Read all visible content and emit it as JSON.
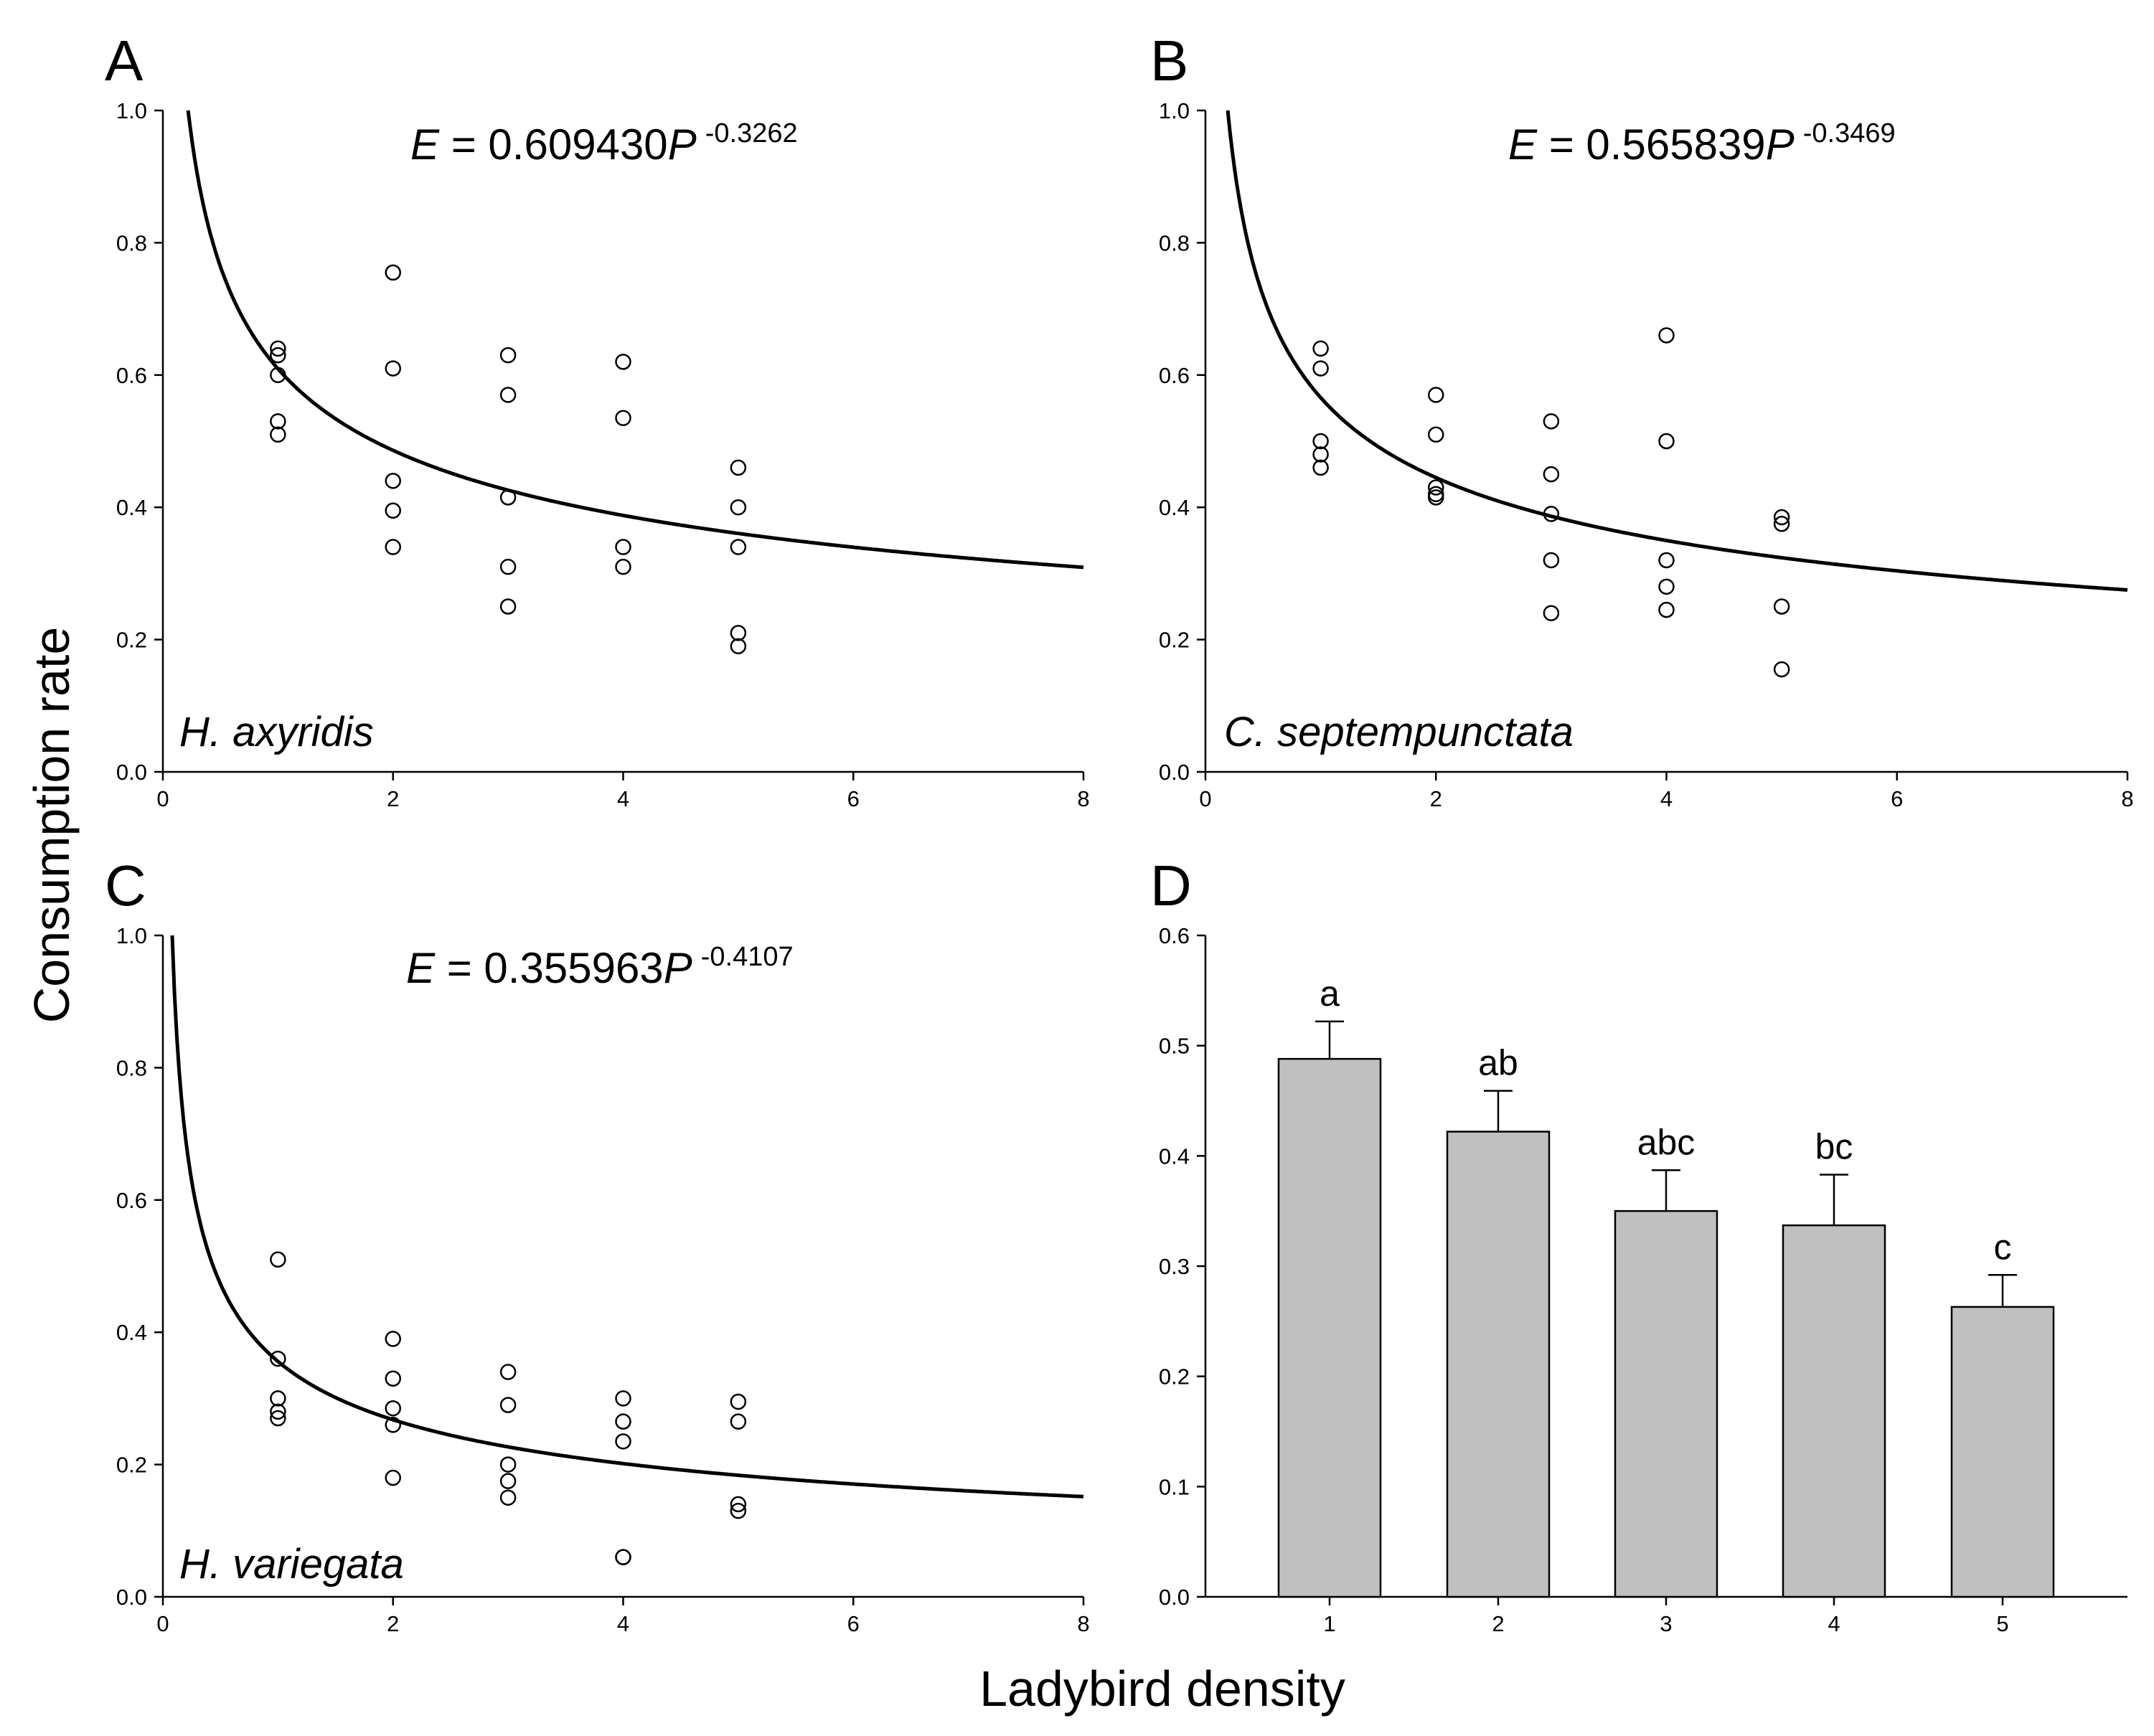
{
  "figure": {
    "ylabel": "Consumption rate",
    "xlabel": "Ladybird density"
  },
  "chart_data": [
    {
      "type": "scatter",
      "panel": "A",
      "species": "H. axyridis",
      "equation": {
        "lhs": "E",
        "equals": " = ",
        "coef": "0.609430",
        "var": "P",
        "exp": "-0.3262"
      },
      "fit": {
        "a": 0.60943,
        "b": -0.3262
      },
      "xlim": [
        0,
        8
      ],
      "ylim": [
        0,
        1.0
      ],
      "xticks": [
        0,
        2,
        4,
        6,
        8
      ],
      "yticks": [
        0.0,
        0.2,
        0.4,
        0.6,
        0.8,
        1.0
      ],
      "points": [
        [
          1,
          0.64
        ],
        [
          1,
          0.63
        ],
        [
          1,
          0.6
        ],
        [
          1,
          0.53
        ],
        [
          1,
          0.51
        ],
        [
          2,
          0.755
        ],
        [
          2,
          0.61
        ],
        [
          2,
          0.44
        ],
        [
          2,
          0.395
        ],
        [
          2,
          0.34
        ],
        [
          3,
          0.63
        ],
        [
          3,
          0.57
        ],
        [
          3,
          0.415
        ],
        [
          3,
          0.31
        ],
        [
          3,
          0.25
        ],
        [
          4,
          0.62
        ],
        [
          4,
          0.535
        ],
        [
          4,
          0.34
        ],
        [
          4,
          0.31
        ],
        [
          5,
          0.46
        ],
        [
          5,
          0.4
        ],
        [
          5,
          0.34
        ],
        [
          5,
          0.21
        ],
        [
          5,
          0.19
        ]
      ]
    },
    {
      "type": "scatter",
      "panel": "B",
      "species": "C. septempunctata",
      "equation": {
        "lhs": "E",
        "equals": " = ",
        "coef": "0.565839",
        "var": "P",
        "exp": "-0.3469"
      },
      "fit": {
        "a": 0.565839,
        "b": -0.3469
      },
      "xlim": [
        0,
        8
      ],
      "ylim": [
        0,
        1.0
      ],
      "xticks": [
        0,
        2,
        4,
        6,
        8
      ],
      "yticks": [
        0.0,
        0.2,
        0.4,
        0.6,
        0.8,
        1.0
      ],
      "points": [
        [
          1,
          0.64
        ],
        [
          1,
          0.61
        ],
        [
          1,
          0.5
        ],
        [
          1,
          0.48
        ],
        [
          1,
          0.46
        ],
        [
          2,
          0.57
        ],
        [
          2,
          0.51
        ],
        [
          2,
          0.43
        ],
        [
          2,
          0.42
        ],
        [
          2,
          0.415
        ],
        [
          3,
          0.53
        ],
        [
          3,
          0.45
        ],
        [
          3,
          0.39
        ],
        [
          3,
          0.32
        ],
        [
          3,
          0.24
        ],
        [
          4,
          0.66
        ],
        [
          4,
          0.5
        ],
        [
          4,
          0.32
        ],
        [
          4,
          0.28
        ],
        [
          4,
          0.245
        ],
        [
          5,
          0.385
        ],
        [
          5,
          0.375
        ],
        [
          5,
          0.25
        ],
        [
          5,
          0.155
        ]
      ]
    },
    {
      "type": "scatter",
      "panel": "C",
      "species": "H. variegata",
      "equation": {
        "lhs": "E",
        "equals": " = ",
        "coef": "0.355963",
        "var": "P",
        "exp": "-0.4107"
      },
      "fit": {
        "a": 0.355963,
        "b": -0.4107
      },
      "xlim": [
        0,
        8
      ],
      "ylim": [
        0,
        1.0
      ],
      "xticks": [
        0,
        2,
        4,
        6,
        8
      ],
      "yticks": [
        0.0,
        0.2,
        0.4,
        0.6,
        0.8,
        1.0
      ],
      "points": [
        [
          1,
          0.51
        ],
        [
          1,
          0.36
        ],
        [
          1,
          0.3
        ],
        [
          1,
          0.28
        ],
        [
          1,
          0.27
        ],
        [
          2,
          0.39
        ],
        [
          2,
          0.33
        ],
        [
          2,
          0.285
        ],
        [
          2,
          0.26
        ],
        [
          2,
          0.18
        ],
        [
          3,
          0.34
        ],
        [
          3,
          0.29
        ],
        [
          3,
          0.2
        ],
        [
          3,
          0.175
        ],
        [
          3,
          0.15
        ],
        [
          4,
          0.3
        ],
        [
          4,
          0.265
        ],
        [
          4,
          0.235
        ],
        [
          4,
          0.06
        ],
        [
          4,
          0.06
        ],
        [
          5,
          0.295
        ],
        [
          5,
          0.265
        ],
        [
          5,
          0.14
        ],
        [
          5,
          0.13
        ]
      ]
    },
    {
      "type": "bar",
      "panel": "D",
      "categories": [
        "1",
        "2",
        "3",
        "4",
        "5"
      ],
      "values": [
        0.488,
        0.422,
        0.35,
        0.337,
        0.263
      ],
      "errors": [
        0.034,
        0.037,
        0.037,
        0.046,
        0.029
      ],
      "letters": [
        "a",
        "ab",
        "abc",
        "bc",
        "c"
      ],
      "ylim": [
        0,
        0.6
      ],
      "yticks": [
        0.0,
        0.1,
        0.2,
        0.3,
        0.4,
        0.5,
        0.6
      ],
      "bar_color": "#c0c0c0"
    }
  ]
}
